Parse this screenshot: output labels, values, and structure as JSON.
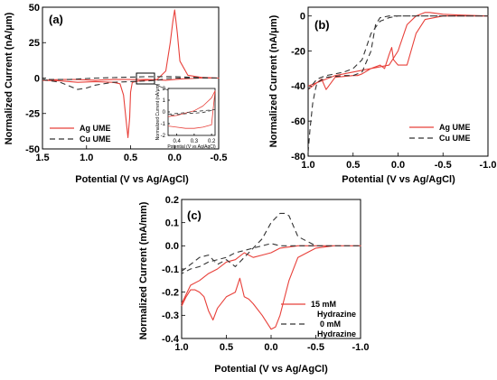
{
  "chart_data": [
    {
      "panel_label": "(a)",
      "type": "line",
      "xlabel": "Potential (V vs Ag/AgCl)",
      "ylabel": "Normalized Current (nA/μm)",
      "xlim": [
        1.5,
        -0.5
      ],
      "ylim": [
        -50,
        50
      ],
      "xticks": [
        "1.5",
        "1.0",
        "0.5",
        "0.0",
        "-0.5"
      ],
      "yticks": [
        "-50",
        "-25",
        "0",
        "25",
        "50"
      ],
      "legend": "bottom-left",
      "series": [
        {
          "name": "Ag UME",
          "color": "#e8403a",
          "dash": "solid",
          "x": [
            1.5,
            1.3,
            1.1,
            0.9,
            0.7,
            0.62,
            0.58,
            0.55,
            0.53,
            0.51,
            0.5,
            0.48,
            0.4,
            0.2,
            0.1,
            0.05,
            0.02,
            0.0,
            -0.03,
            -0.06,
            -0.15,
            -0.3,
            -0.5,
            -0.3,
            -0.1,
            0.0,
            0.1,
            0.3,
            0.5,
            0.7,
            0.9,
            1.1,
            1.3,
            1.5
          ],
          "y": [
            -1.5,
            -2,
            -3,
            -2.5,
            -3,
            -4,
            -12,
            -30,
            -42,
            -28,
            -10,
            -3,
            -2,
            -1,
            5,
            25,
            40,
            48,
            32,
            12,
            2,
            0.5,
            0,
            0,
            -0.5,
            -1,
            -1.5,
            -1,
            -1,
            -1,
            -1.5,
            -1,
            -1,
            -1.5
          ]
        },
        {
          "name": "Cu UME",
          "color": "#333333",
          "dash": "6,4",
          "x": [
            1.5,
            1.3,
            1.1,
            1.0,
            0.9,
            0.7,
            0.5,
            0.3,
            0.2,
            0.1,
            0.0,
            -0.2,
            -0.5,
            -0.2,
            0.0,
            0.3,
            0.6,
            0.9,
            1.2,
            1.5
          ],
          "y": [
            -1,
            -3,
            -8,
            -7,
            -5,
            -3,
            -2.5,
            -2,
            -1.5,
            -0.5,
            0,
            0,
            0,
            0.5,
            1,
            1,
            0.5,
            0,
            -1,
            -1
          ]
        }
      ]
    },
    {
      "panel_label": "(b)",
      "type": "line",
      "xlabel": "Potential (V vs Ag/AgCl)",
      "ylabel": "Normalized Current (nA/μm)",
      "xlim": [
        1.0,
        -1.0
      ],
      "ylim": [
        -80,
        5
      ],
      "xticks": [
        "1.0",
        "0.5",
        "0.0",
        "-0.5",
        "-1.0"
      ],
      "yticks": [
        "0",
        "-20",
        "-40",
        "-60",
        "-80"
      ],
      "legend": "bottom-right",
      "series": [
        {
          "name": "Ag UME",
          "color": "#e8403a",
          "dash": "solid",
          "x": [
            1.0,
            0.9,
            0.85,
            0.8,
            0.7,
            0.5,
            0.45,
            0.4,
            0.3,
            0.2,
            0.15,
            0.1,
            0.07,
            0.05,
            0.0,
            -0.1,
            -0.2,
            -0.3,
            -0.5,
            -0.7,
            -1.0,
            -0.7,
            -0.5,
            -0.35,
            -0.3,
            -0.25,
            -0.2,
            -0.1,
            0.0,
            0.1,
            0.3,
            0.5,
            0.7,
            0.9,
            1.0
          ],
          "y": [
            -40,
            -38,
            -36,
            -42,
            -35,
            -34,
            -34,
            -33,
            -30,
            -28,
            -30,
            -22,
            -18,
            -25,
            -28,
            -28,
            -10,
            -2,
            0,
            0,
            0,
            0.5,
            1,
            2,
            2,
            1,
            0,
            -5,
            -20,
            -28,
            -30,
            -32,
            -34,
            -38,
            -42
          ]
        },
        {
          "name": "Cu UME",
          "color": "#333333",
          "dash": "6,4",
          "x": [
            1.0,
            0.98,
            0.95,
            0.92,
            0.9,
            0.8,
            0.6,
            0.5,
            0.4,
            0.3,
            0.25,
            0.2,
            0.1,
            0.0,
            -0.2,
            -0.5,
            -0.8,
            -1.0,
            -0.8,
            -0.5,
            -0.2,
            0.0,
            0.1,
            0.2,
            0.3,
            0.4,
            0.5,
            0.6,
            0.7,
            0.8,
            0.9,
            1.0
          ],
          "y": [
            -78,
            -65,
            -50,
            -42,
            -38,
            -35,
            -34,
            -34,
            -32,
            -20,
            -5,
            -1,
            0,
            0,
            0,
            0,
            0,
            0,
            0,
            0,
            0,
            0,
            -1,
            -3,
            -10,
            -25,
            -30,
            -32,
            -33,
            -34,
            -36,
            -42
          ]
        }
      ]
    },
    {
      "panel_label": "(c)",
      "type": "line",
      "xlabel": "Potential (V vs Ag/AgCl)",
      "ylabel": "Normalized Current (mA/mm)",
      "xlim": [
        1.0,
        -1.0
      ],
      "ylim": [
        -0.4,
        0.2
      ],
      "xticks": [
        "1.0",
        "0.5",
        "0.0",
        "-0.5",
        "-1.0"
      ],
      "yticks": [
        "0.2",
        "0.1",
        "0.0",
        "-0.1",
        "-0.2",
        "-0.3",
        "-0.4"
      ],
      "legend": "bottom-right",
      "series": [
        {
          "name": "15 mM Hydrazine",
          "color": "#e8403a",
          "dash": "solid",
          "x": [
            1.0,
            0.95,
            0.9,
            0.85,
            0.8,
            0.75,
            0.7,
            0.65,
            0.6,
            0.5,
            0.4,
            0.35,
            0.3,
            0.25,
            0.2,
            0.1,
            0.0,
            -0.05,
            -0.1,
            -0.2,
            -0.3,
            -0.5,
            -0.7,
            -1.0,
            -0.7,
            -0.5,
            -0.3,
            -0.1,
            0.0,
            0.1,
            0.2,
            0.3,
            0.4,
            0.5,
            0.6,
            0.7,
            0.8,
            0.9,
            1.0
          ],
          "y": [
            -0.26,
            -0.22,
            -0.19,
            -0.19,
            -0.2,
            -0.22,
            -0.28,
            -0.32,
            -0.27,
            -0.22,
            -0.2,
            -0.14,
            -0.22,
            -0.23,
            -0.25,
            -0.3,
            -0.36,
            -0.35,
            -0.3,
            -0.15,
            -0.05,
            -0.01,
            0.0,
            0.0,
            0.0,
            0.0,
            0.0,
            -0.01,
            -0.03,
            -0.04,
            -0.05,
            -0.03,
            -0.06,
            -0.07,
            -0.1,
            -0.12,
            -0.15,
            -0.17,
            -0.25
          ]
        },
        {
          "name": "0 mM Hydrazine",
          "color": "#333333",
          "dash": "6,4",
          "x": [
            1.0,
            0.9,
            0.8,
            0.7,
            0.6,
            0.5,
            0.4,
            0.3,
            0.2,
            0.1,
            0.0,
            -0.1,
            -0.15,
            -0.2,
            -0.3,
            -0.5,
            -1.0,
            -0.5,
            -0.3,
            -0.2,
            -0.1,
            0.0,
            0.1,
            0.2,
            0.3,
            0.4,
            0.5,
            0.6,
            0.7,
            0.8,
            0.9,
            1.0
          ],
          "y": [
            -0.11,
            -0.08,
            -0.05,
            -0.04,
            -0.08,
            -0.06,
            -0.09,
            -0.05,
            -0.01,
            0.03,
            0.1,
            0.14,
            0.14,
            0.13,
            0.04,
            0.0,
            0.0,
            0.0,
            0.0,
            0.0,
            0.0,
            0.01,
            0.0,
            -0.01,
            -0.02,
            -0.03,
            -0.05,
            -0.06,
            -0.07,
            -0.09,
            -0.1,
            -0.12
          ]
        }
      ]
    }
  ],
  "inset": {
    "xlabel": "Potential (V vs Ag/AgCl)",
    "ylabel": "Normalized Current (nA/μm)",
    "xlim": [
      0.45,
      0.18
    ],
    "ylim": [
      -2,
      2
    ],
    "xticks": [
      "0.4",
      "0.3",
      "0.2"
    ],
    "yticks": [
      "2",
      "1",
      "0",
      "-1",
      "-2"
    ],
    "series": [
      {
        "color": "#e8403a",
        "dash": "solid",
        "x": [
          0.45,
          0.4,
          0.35,
          0.3,
          0.25,
          0.2,
          0.18,
          0.2,
          0.25,
          0.3,
          0.35,
          0.4,
          0.45
        ],
        "y": [
          -0.4,
          -0.3,
          -0.1,
          0.1,
          0.5,
          1.2,
          1.8,
          -1.1,
          -1.3,
          -1.4,
          -1.4,
          -1.3,
          -1.2
        ]
      },
      {
        "color": "#333333",
        "dash": "4,3",
        "x": [
          0.45,
          0.35,
          0.25,
          0.18,
          0.25,
          0.35,
          0.45
        ],
        "y": [
          -0.2,
          -0.05,
          0.1,
          0.2,
          -0.05,
          -0.15,
          -0.3
        ]
      }
    ]
  }
}
